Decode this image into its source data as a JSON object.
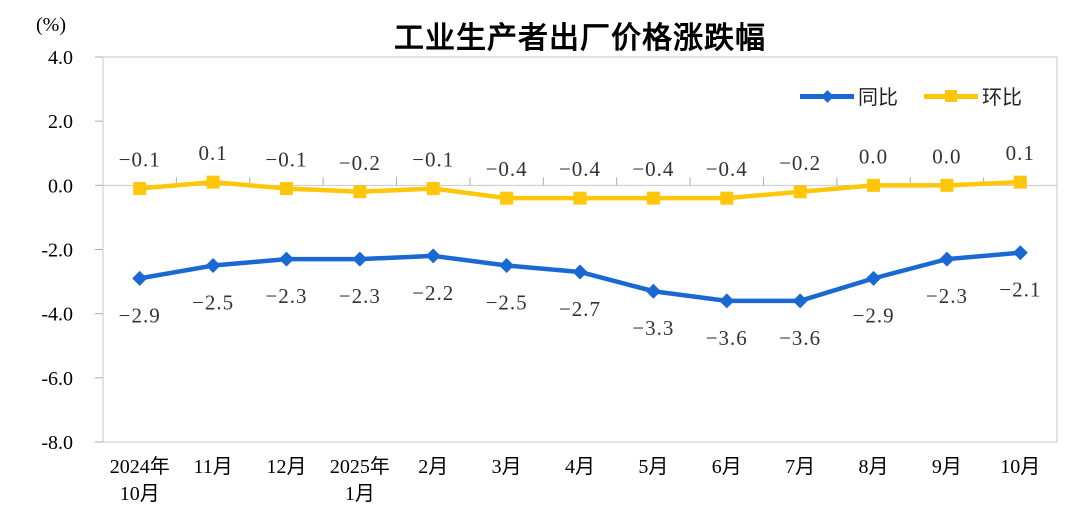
{
  "chart_data": {
    "type": "line",
    "title": "工业生产者出厂价格涨跌幅",
    "unit": "(%)",
    "categories": [
      "2024年10月",
      "11月",
      "12月",
      "2025年1月",
      "2月",
      "3月",
      "4月",
      "5月",
      "6月",
      "7月",
      "8月",
      "9月",
      "10月"
    ],
    "category_tick_lines": [
      [
        "2024年",
        "10月"
      ],
      [
        "11月"
      ],
      [
        "12月"
      ],
      [
        "2025年",
        "1月"
      ],
      [
        "2月"
      ],
      [
        "3月"
      ],
      [
        "4月"
      ],
      [
        "5月"
      ],
      [
        "6月"
      ],
      [
        "7月"
      ],
      [
        "8月"
      ],
      [
        "9月"
      ],
      [
        "10月"
      ]
    ],
    "series": [
      {
        "key": "yoy",
        "name": "同比",
        "color": "#1A68D2",
        "marker": "diamond",
        "label_position": "below",
        "values": [
          -2.9,
          -2.5,
          -2.3,
          -2.3,
          -2.2,
          -2.5,
          -2.7,
          -3.3,
          -3.6,
          -3.6,
          -2.9,
          -2.3,
          -2.1
        ]
      },
      {
        "key": "mom",
        "name": "环比",
        "color": "#FFC60A",
        "marker": "square",
        "label_position": "above",
        "values": [
          -0.1,
          0.1,
          -0.1,
          -0.2,
          -0.1,
          -0.4,
          -0.4,
          -0.4,
          -0.4,
          -0.2,
          0.0,
          0.0,
          0.1
        ]
      }
    ],
    "ylim": [
      -8.0,
      4.0
    ],
    "ytick_step": 2.0,
    "ytick_labels": [
      "4.0",
      "2.0",
      "0.0",
      "-2.0",
      "-4.0",
      "-6.0",
      "-8.0"
    ],
    "grid": false,
    "data_labels": true,
    "legend_position": "top-right"
  },
  "colors": {
    "axis_line": "#C9C9C9",
    "tick": "#ADADAD",
    "data_label": "#333333",
    "axis_label": "#000000"
  }
}
